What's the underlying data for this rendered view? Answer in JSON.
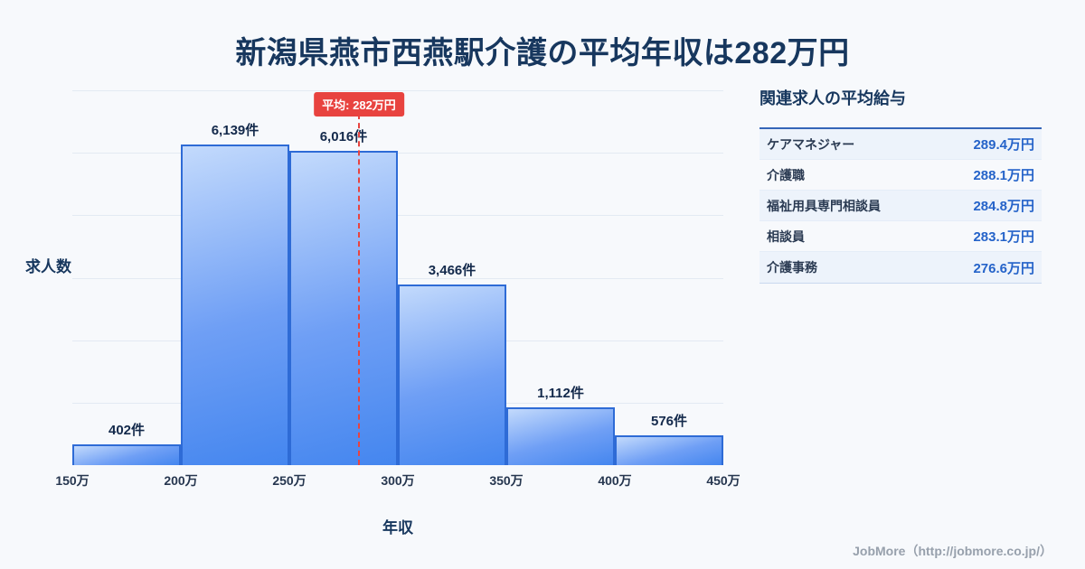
{
  "main": {
    "title": "新潟県燕市西燕駅介護の平均年収は282万円",
    "footer": "JobMore（http://jobmore.co.jp/）"
  },
  "chart_data": {
    "type": "bar",
    "title": "新潟県燕市西燕駅介護の平均年収は282万円",
    "xlabel": "年収",
    "ylabel": "求人数",
    "x_range": [
      150,
      450
    ],
    "x_ticks": [
      "150万",
      "200万",
      "250万",
      "300万",
      "350万",
      "400万",
      "450万"
    ],
    "categories": [
      "150万-200万",
      "200万-250万",
      "250万-300万",
      "300万-350万",
      "350万-400万",
      "400万-450万"
    ],
    "values": [
      402,
      6139,
      6016,
      3466,
      1112,
      576
    ],
    "bar_labels": [
      "402件",
      "6,139件",
      "6,016件",
      "3,466件",
      "1,112件",
      "576件"
    ],
    "average": {
      "value": 282,
      "label": "平均: 282万円"
    },
    "grid": true,
    "colors": {
      "bar_top": "#c3dafc",
      "bar_bottom": "#4486ef",
      "bar_border": "#2e6bd6",
      "average_line": "#e8433f",
      "title_text": "#17375e"
    }
  },
  "side_panel": {
    "title": "関連求人の平均給与",
    "rows": [
      {
        "label": "ケアマネジャー",
        "value": "289.4万円"
      },
      {
        "label": "介護職",
        "value": "288.1万円"
      },
      {
        "label": "福祉用具専門相談員",
        "value": "284.8万円"
      },
      {
        "label": "相談員",
        "value": "283.1万円"
      },
      {
        "label": "介護事務",
        "value": "276.6万円"
      }
    ]
  }
}
